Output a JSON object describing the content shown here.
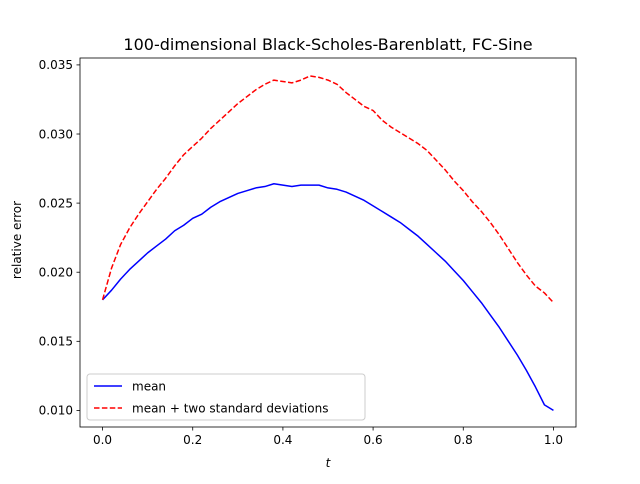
{
  "chart_data": {
    "type": "line",
    "title": "100-dimensional Black-Scholes-Barenblatt, FC-Sine",
    "xlabel": "t",
    "ylabel": "relative error",
    "xlim": [
      -0.05,
      1.05
    ],
    "ylim": [
      0.0088,
      0.0355
    ],
    "xticks": [
      {
        "value": 0.0,
        "label": "0.0"
      },
      {
        "value": 0.2,
        "label": "0.2"
      },
      {
        "value": 0.4,
        "label": "0.4"
      },
      {
        "value": 0.6,
        "label": "0.6"
      },
      {
        "value": 0.8,
        "label": "0.8"
      },
      {
        "value": 1.0,
        "label": "1.0"
      }
    ],
    "yticks": [
      {
        "value": 0.01,
        "label": "0.010"
      },
      {
        "value": 0.015,
        "label": "0.015"
      },
      {
        "value": 0.02,
        "label": "0.020"
      },
      {
        "value": 0.025,
        "label": "0.025"
      },
      {
        "value": 0.03,
        "label": "0.030"
      },
      {
        "value": 0.035,
        "label": "0.035"
      }
    ],
    "grid": false,
    "legend_position": "lower-left",
    "x": [
      0.0,
      0.02,
      0.04,
      0.06,
      0.08,
      0.1,
      0.12,
      0.14,
      0.16,
      0.18,
      0.2,
      0.22,
      0.24,
      0.26,
      0.28,
      0.3,
      0.32,
      0.34,
      0.36,
      0.38,
      0.4,
      0.42,
      0.44,
      0.46,
      0.48,
      0.5,
      0.52,
      0.54,
      0.56,
      0.58,
      0.6,
      0.62,
      0.64,
      0.66,
      0.68,
      0.7,
      0.72,
      0.74,
      0.76,
      0.78,
      0.8,
      0.82,
      0.84,
      0.86,
      0.88,
      0.9,
      0.92,
      0.94,
      0.96,
      0.98,
      1.0
    ],
    "series": [
      {
        "name": "mean",
        "color": "#0000ff",
        "dash": "solid",
        "values": [
          0.018,
          0.0187,
          0.0195,
          0.0202,
          0.0208,
          0.0214,
          0.0219,
          0.0224,
          0.023,
          0.0234,
          0.0239,
          0.0242,
          0.0247,
          0.0251,
          0.0254,
          0.0257,
          0.0259,
          0.0261,
          0.0262,
          0.0264,
          0.0263,
          0.0262,
          0.0263,
          0.0263,
          0.0263,
          0.0261,
          0.026,
          0.0258,
          0.0255,
          0.0252,
          0.0248,
          0.0244,
          0.024,
          0.0236,
          0.0231,
          0.0226,
          0.022,
          0.0214,
          0.0208,
          0.0201,
          0.0194,
          0.0186,
          0.0178,
          0.0169,
          0.016,
          0.015,
          0.014,
          0.0129,
          0.0117,
          0.0104,
          0.01
        ]
      },
      {
        "name": "mean + two standard deviations",
        "color": "#ff0000",
        "dash": "dashed",
        "values": [
          0.018,
          0.0203,
          0.022,
          0.0232,
          0.0242,
          0.0251,
          0.026,
          0.0268,
          0.0277,
          0.0285,
          0.0291,
          0.0297,
          0.0304,
          0.031,
          0.0316,
          0.0322,
          0.0327,
          0.0332,
          0.0336,
          0.0339,
          0.0338,
          0.0337,
          0.0339,
          0.0342,
          0.0341,
          0.0339,
          0.0336,
          0.033,
          0.0325,
          0.032,
          0.0317,
          0.031,
          0.0305,
          0.0301,
          0.0297,
          0.0293,
          0.0288,
          0.0281,
          0.0274,
          0.0266,
          0.0259,
          0.0251,
          0.0244,
          0.0236,
          0.0227,
          0.0217,
          0.0207,
          0.0198,
          0.019,
          0.0185,
          0.0178
        ]
      }
    ]
  }
}
